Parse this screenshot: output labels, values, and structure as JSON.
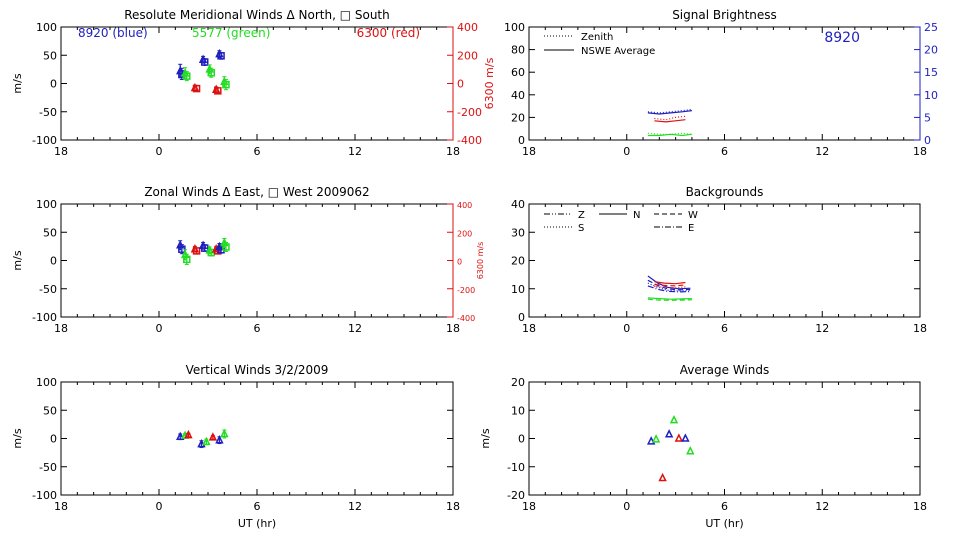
{
  "colors": {
    "blue": "#1f1fbf",
    "green": "#22dd22",
    "red": "#dd1111",
    "axis": "#000000"
  },
  "chart_data": [
    {
      "id": "meridional",
      "type": "scatter",
      "title": "Resolute Meridional Winds Δ North, □ South",
      "ylabel": "m/s",
      "xlabel": "",
      "xlim": [
        18,
        42
      ],
      "xticks": [
        18,
        24,
        30,
        36,
        42
      ],
      "xticklabels": [
        "18",
        "0",
        "6",
        "12",
        "18"
      ],
      "ylim": [
        -100,
        100
      ],
      "yticks": [
        -100,
        -50,
        0,
        50,
        100
      ],
      "right_axis": {
        "label": "6300 m/s",
        "ylim": [
          -400,
          400
        ],
        "ticks": [
          -400,
          -200,
          0,
          200,
          400
        ],
        "color": "#dd1111"
      },
      "annotations": [
        {
          "text": "8920 (blue)",
          "color": "#1f1fbf"
        },
        {
          "text": "5577 (green)",
          "color": "#22dd22"
        },
        {
          "text": "6300 (red)",
          "color": "#dd1111"
        }
      ],
      "points": [
        {
          "x": 25.3,
          "y": 22,
          "err": 12,
          "marker": "triangle",
          "color": "#1f1fbf"
        },
        {
          "x": 25.4,
          "y": 17,
          "err": 10,
          "marker": "square",
          "color": "#1f1fbf"
        },
        {
          "x": 25.6,
          "y": 18,
          "err": 10,
          "marker": "triangle",
          "color": "#22dd22"
        },
        {
          "x": 25.7,
          "y": 13,
          "err": 8,
          "marker": "square",
          "color": "#22dd22"
        },
        {
          "x": 26.2,
          "y": -8,
          "err": 5,
          "marker": "triangle",
          "color": "#dd1111"
        },
        {
          "x": 26.3,
          "y": -9,
          "err": 5,
          "marker": "square",
          "color": "#dd1111"
        },
        {
          "x": 26.7,
          "y": 42,
          "err": 6,
          "marker": "triangle",
          "color": "#1f1fbf"
        },
        {
          "x": 26.8,
          "y": 38,
          "err": 6,
          "marker": "square",
          "color": "#1f1fbf"
        },
        {
          "x": 27.1,
          "y": 25,
          "err": 8,
          "marker": "triangle",
          "color": "#22dd22"
        },
        {
          "x": 27.2,
          "y": 19,
          "err": 8,
          "marker": "square",
          "color": "#22dd22"
        },
        {
          "x": 27.5,
          "y": -11,
          "err": 5,
          "marker": "triangle",
          "color": "#dd1111"
        },
        {
          "x": 27.6,
          "y": -13,
          "err": 5,
          "marker": "square",
          "color": "#dd1111"
        },
        {
          "x": 27.7,
          "y": 52,
          "err": 6,
          "marker": "triangle",
          "color": "#1f1fbf"
        },
        {
          "x": 27.8,
          "y": 49,
          "err": 6,
          "marker": "square",
          "color": "#1f1fbf"
        },
        {
          "x": 28.0,
          "y": 3,
          "err": 9,
          "marker": "triangle",
          "color": "#22dd22"
        },
        {
          "x": 28.1,
          "y": -2,
          "err": 9,
          "marker": "square",
          "color": "#22dd22"
        }
      ]
    },
    {
      "id": "brightness",
      "type": "line",
      "title": "Signal Brightness",
      "ylabel": "",
      "xlabel": "",
      "xlim": [
        18,
        42
      ],
      "xticks": [
        18,
        24,
        30,
        36,
        42
      ],
      "xticklabels": [
        "18",
        "0",
        "6",
        "12",
        "18"
      ],
      "ylim": [
        0,
        100
      ],
      "yticks": [
        0,
        20,
        40,
        60,
        80,
        100
      ],
      "right_axis": {
        "label": "",
        "ylim": [
          0,
          25
        ],
        "ticks": [
          0,
          5,
          10,
          15,
          20,
          25
        ],
        "color": "#1f1fbf"
      },
      "annotations": [
        {
          "text": "8920",
          "color": "#1f1fbf"
        }
      ],
      "legend": [
        {
          "label": "Zenith",
          "dash": "dotted"
        },
        {
          "label": "NSWE Average",
          "dash": "solid"
        }
      ],
      "series": [
        {
          "color": "#1f1fbf",
          "dash": "dotted",
          "x": [
            25.3,
            26.0,
            26.7,
            27.4,
            28.0
          ],
          "y": [
            25,
            24,
            25,
            26,
            27
          ]
        },
        {
          "color": "#1f1fbf",
          "dash": "solid",
          "x": [
            25.3,
            26.0,
            26.7,
            27.4,
            28.0
          ],
          "y": [
            24,
            23,
            24,
            25,
            26
          ]
        },
        {
          "color": "#dd1111",
          "dash": "dotted",
          "x": [
            25.7,
            26.4,
            27.0,
            27.6
          ],
          "y": [
            19,
            18,
            20,
            21
          ]
        },
        {
          "color": "#dd1111",
          "dash": "solid",
          "x": [
            25.7,
            26.4,
            27.0,
            27.6
          ],
          "y": [
            17,
            16,
            17,
            18
          ]
        },
        {
          "color": "#22dd22",
          "dash": "dotted",
          "x": [
            25.3,
            26.0,
            26.7,
            27.4,
            28.0
          ],
          "y": [
            6,
            5,
            5,
            6,
            5
          ]
        },
        {
          "color": "#22dd22",
          "dash": "solid",
          "x": [
            25.3,
            26.0,
            26.7,
            27.4,
            28.0
          ],
          "y": [
            4,
            4,
            5,
            4,
            5
          ]
        }
      ]
    },
    {
      "id": "zonal",
      "type": "scatter",
      "title": "Zonal Winds Δ East, □ West 2009062",
      "ylabel": "m/s",
      "xlabel": "",
      "xlim": [
        18,
        42
      ],
      "xticks": [
        18,
        24,
        30,
        36,
        42
      ],
      "xticklabels": [
        "18",
        "0",
        "6",
        "12",
        "18"
      ],
      "ylim": [
        -100,
        100
      ],
      "yticks": [
        -100,
        -50,
        0,
        50,
        100
      ],
      "right_axis": {
        "label": "6300 m/s",
        "ylim": [
          -400,
          400
        ],
        "ticks": [
          -400,
          -200,
          0,
          200,
          400
        ],
        "color": "#dd1111"
      },
      "annotations": [],
      "points": [
        {
          "x": 25.3,
          "y": 27,
          "err": 8,
          "marker": "triangle",
          "color": "#1f1fbf"
        },
        {
          "x": 25.4,
          "y": 20,
          "err": 8,
          "marker": "square",
          "color": "#1f1fbf"
        },
        {
          "x": 25.6,
          "y": 10,
          "err": 9,
          "marker": "triangle",
          "color": "#22dd22"
        },
        {
          "x": 25.7,
          "y": 2,
          "err": 9,
          "marker": "square",
          "color": "#22dd22"
        },
        {
          "x": 26.2,
          "y": 20,
          "err": 5,
          "marker": "triangle",
          "color": "#dd1111"
        },
        {
          "x": 26.3,
          "y": 17,
          "err": 5,
          "marker": "square",
          "color": "#dd1111"
        },
        {
          "x": 26.7,
          "y": 26,
          "err": 6,
          "marker": "triangle",
          "color": "#1f1fbf"
        },
        {
          "x": 26.8,
          "y": 22,
          "err": 6,
          "marker": "square",
          "color": "#1f1fbf"
        },
        {
          "x": 27.1,
          "y": 18,
          "err": 6,
          "marker": "triangle",
          "color": "#22dd22"
        },
        {
          "x": 27.2,
          "y": 14,
          "err": 6,
          "marker": "square",
          "color": "#22dd22"
        },
        {
          "x": 27.5,
          "y": 20,
          "err": 5,
          "marker": "triangle",
          "color": "#dd1111"
        },
        {
          "x": 27.6,
          "y": 17,
          "err": 5,
          "marker": "square",
          "color": "#dd1111"
        },
        {
          "x": 27.7,
          "y": 24,
          "err": 6,
          "marker": "triangle",
          "color": "#1f1fbf"
        },
        {
          "x": 27.8,
          "y": 19,
          "err": 6,
          "marker": "square",
          "color": "#1f1fbf"
        },
        {
          "x": 28.0,
          "y": 31,
          "err": 8,
          "marker": "triangle",
          "color": "#22dd22"
        },
        {
          "x": 28.1,
          "y": 24,
          "err": 8,
          "marker": "square",
          "color": "#22dd22"
        }
      ]
    },
    {
      "id": "backgrounds",
      "type": "line",
      "title": "Backgrounds",
      "ylabel": "",
      "xlabel": "",
      "xlim": [
        18,
        42
      ],
      "xticks": [
        18,
        24,
        30,
        36,
        42
      ],
      "xticklabels": [
        "18",
        "0",
        "6",
        "12",
        "18"
      ],
      "ylim": [
        0,
        40
      ],
      "yticks": [
        0,
        10,
        20,
        30,
        40
      ],
      "annotations": [],
      "legend": [
        {
          "label": "Z",
          "dash": "dashdotdot"
        },
        {
          "label": "N",
          "dash": "solid"
        },
        {
          "label": "W",
          "dash": "dashed"
        },
        {
          "label": "S",
          "dash": "dotted"
        },
        {
          "label": "E",
          "dash": "dashdot"
        }
      ],
      "series": [
        {
          "color": "#1f1fbf",
          "dash": "solid",
          "x": [
            25.3,
            25.9,
            26.5,
            27.2,
            27.9
          ],
          "y": [
            14.5,
            12.0,
            10.5,
            10.0,
            10.2
          ]
        },
        {
          "color": "#1f1fbf",
          "dash": "dashed",
          "x": [
            25.3,
            25.9,
            26.5,
            27.2,
            27.9
          ],
          "y": [
            13.0,
            11.2,
            10.0,
            9.6,
            9.8
          ]
        },
        {
          "color": "#1f1fbf",
          "dash": "dotted",
          "x": [
            25.3,
            25.9,
            26.5,
            27.2,
            27.9
          ],
          "y": [
            12.0,
            10.5,
            9.5,
            9.2,
            9.4
          ]
        },
        {
          "color": "#1f1fbf",
          "dash": "dashdot",
          "x": [
            25.3,
            25.9,
            26.5,
            27.2,
            27.9
          ],
          "y": [
            11.0,
            9.8,
            9.1,
            8.9,
            9.0
          ]
        },
        {
          "color": "#dd1111",
          "dash": "solid",
          "x": [
            25.7,
            26.3,
            27.0,
            27.6
          ],
          "y": [
            12.5,
            12.0,
            11.8,
            12.2
          ]
        },
        {
          "color": "#dd1111",
          "dash": "dashed",
          "x": [
            25.7,
            26.3,
            27.0,
            27.6
          ],
          "y": [
            11.5,
            11.2,
            11.0,
            11.4
          ]
        },
        {
          "color": "#dd1111",
          "dash": "dotted",
          "x": [
            25.7,
            26.3,
            27.0,
            27.6
          ],
          "y": [
            10.8,
            10.5,
            10.3,
            10.7
          ]
        },
        {
          "color": "#22dd22",
          "dash": "solid",
          "x": [
            25.3,
            26.0,
            26.7,
            27.4,
            28.0
          ],
          "y": [
            6.8,
            6.5,
            6.3,
            6.4,
            6.5
          ]
        },
        {
          "color": "#22dd22",
          "dash": "dashed",
          "x": [
            25.3,
            26.0,
            26.7,
            27.4,
            28.0
          ],
          "y": [
            6.3,
            6.0,
            5.9,
            6.0,
            6.1
          ]
        }
      ]
    },
    {
      "id": "vertical",
      "type": "scatter",
      "title": "Vertical Winds 3/2/2009",
      "ylabel": "m/s",
      "xlabel": "UT (hr)",
      "xlim": [
        18,
        42
      ],
      "xticks": [
        18,
        24,
        30,
        36,
        42
      ],
      "xticklabels": [
        "18",
        "0",
        "6",
        "12",
        "18"
      ],
      "ylim": [
        -100,
        100
      ],
      "yticks": [
        -100,
        -50,
        0,
        50,
        100
      ],
      "annotations": [],
      "points": [
        {
          "x": 25.3,
          "y": 3,
          "err": 5,
          "marker": "triangle",
          "color": "#1f1fbf"
        },
        {
          "x": 25.6,
          "y": 5,
          "err": 4,
          "marker": "triangle",
          "color": "#22dd22"
        },
        {
          "x": 25.8,
          "y": 6,
          "err": 3,
          "marker": "triangle",
          "color": "#dd1111"
        },
        {
          "x": 26.6,
          "y": -10,
          "err": 6,
          "marker": "triangle",
          "color": "#1f1fbf"
        },
        {
          "x": 26.9,
          "y": -6,
          "err": 5,
          "marker": "triangle",
          "color": "#22dd22"
        },
        {
          "x": 27.3,
          "y": 2,
          "err": 3,
          "marker": "triangle",
          "color": "#dd1111"
        },
        {
          "x": 27.7,
          "y": -3,
          "err": 6,
          "marker": "triangle",
          "color": "#1f1fbf"
        },
        {
          "x": 28.0,
          "y": 8,
          "err": 7,
          "marker": "triangle",
          "color": "#22dd22"
        }
      ]
    },
    {
      "id": "average",
      "type": "scatter",
      "title": "Average Winds",
      "ylabel": "m/s",
      "xlabel": "UT (hr)",
      "xlim": [
        18,
        42
      ],
      "xticks": [
        18,
        24,
        30,
        36,
        42
      ],
      "xticklabels": [
        "18",
        "0",
        "6",
        "12",
        "18"
      ],
      "ylim": [
        -20,
        20
      ],
      "yticks": [
        -20,
        -10,
        0,
        10,
        20
      ],
      "annotations": [],
      "points": [
        {
          "x": 25.5,
          "y": -1,
          "marker": "triangle-open",
          "color": "#1f1fbf"
        },
        {
          "x": 25.8,
          "y": -0.3,
          "marker": "triangle-open",
          "color": "#22dd22"
        },
        {
          "x": 26.2,
          "y": -14,
          "marker": "triangle-open",
          "color": "#dd1111"
        },
        {
          "x": 26.6,
          "y": 1.5,
          "marker": "triangle-open",
          "color": "#1f1fbf"
        },
        {
          "x": 26.9,
          "y": 6.5,
          "marker": "triangle-open",
          "color": "#22dd22"
        },
        {
          "x": 27.2,
          "y": 0,
          "marker": "triangle-open",
          "color": "#dd1111"
        },
        {
          "x": 27.6,
          "y": 0,
          "marker": "triangle-open",
          "color": "#1f1fbf"
        },
        {
          "x": 27.9,
          "y": -4.5,
          "marker": "triangle-open",
          "color": "#22dd22"
        }
      ]
    }
  ]
}
